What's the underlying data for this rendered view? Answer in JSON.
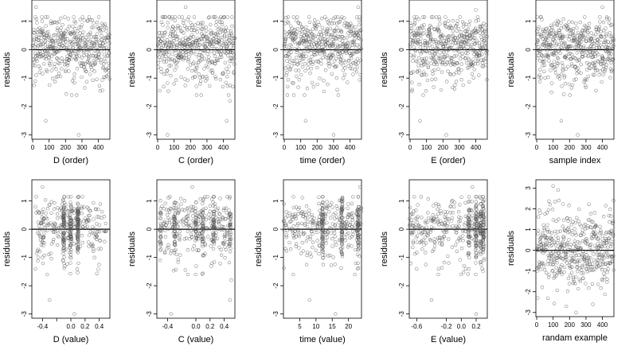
{
  "chart_data": [
    {
      "id": "D_order",
      "type": "scatter",
      "xlabel": "D (order)",
      "ylabel": "residuals",
      "xlim": [
        -5,
        470
      ],
      "ylim": [
        -3.15,
        1.75
      ],
      "xticks": [
        0,
        100,
        200,
        300,
        400
      ],
      "yticks": [
        -3,
        -2,
        -1,
        0,
        1
      ],
      "hline": 0,
      "gen": {
        "kind": "order",
        "n": 470,
        "seed": 11
      },
      "outliers": [
        [
          80,
          -2.5
        ],
        [
          280,
          -3.0
        ],
        [
          255,
          1.0
        ],
        [
          20,
          1.5
        ]
      ]
    },
    {
      "id": "C_order",
      "type": "scatter",
      "xlabel": "C (order)",
      "ylabel": "residuals",
      "xlim": [
        -5,
        470
      ],
      "ylim": [
        -3.15,
        1.75
      ],
      "xticks": [
        0,
        100,
        200,
        300,
        400
      ],
      "yticks": [
        -3,
        -2,
        -1,
        0,
        1
      ],
      "hline": 0,
      "gen": {
        "kind": "order",
        "n": 470,
        "seed": 22
      },
      "outliers": [
        [
          60,
          -3.0
        ],
        [
          420,
          -2.5
        ],
        [
          170,
          1.5
        ],
        [
          440,
          -1.8
        ]
      ]
    },
    {
      "id": "time_order",
      "type": "scatter",
      "xlabel": "time (order)",
      "ylabel": "residuals",
      "xlim": [
        -5,
        470
      ],
      "ylim": [
        -3.15,
        1.75
      ],
      "xticks": [
        0,
        100,
        200,
        300,
        400
      ],
      "yticks": [
        -3,
        -2,
        -1,
        0,
        1
      ],
      "hline": 0,
      "gen": {
        "kind": "order",
        "n": 470,
        "seed": 33
      },
      "outliers": [
        [
          130,
          -2.5
        ],
        [
          300,
          -3.0
        ],
        [
          450,
          1.5
        ],
        [
          20,
          -1.3
        ]
      ]
    },
    {
      "id": "E_order",
      "type": "scatter",
      "xlabel": "E (order)",
      "ylabel": "residuals",
      "xlim": [
        -5,
        470
      ],
      "ylim": [
        -3.15,
        1.75
      ],
      "xticks": [
        0,
        100,
        200,
        300,
        400
      ],
      "yticks": [
        -3,
        -2,
        -1,
        0,
        1
      ],
      "hline": 0,
      "gen": {
        "kind": "order",
        "n": 470,
        "seed": 44
      },
      "outliers": [
        [
          60,
          -2.5
        ],
        [
          220,
          -3.0
        ],
        [
          80,
          -1.6
        ],
        [
          400,
          1.4
        ]
      ]
    },
    {
      "id": "sample_index",
      "type": "scatter",
      "xlabel": "sample index",
      "ylabel": "residuals",
      "xlim": [
        -5,
        470
      ],
      "ylim": [
        -3.15,
        1.75
      ],
      "xticks": [
        0,
        100,
        200,
        300,
        400
      ],
      "yticks": [
        -3,
        -2,
        -1,
        0,
        1
      ],
      "hline": 0,
      "gen": {
        "kind": "order",
        "n": 470,
        "seed": 55
      },
      "outliers": [
        [
          150,
          -2.5
        ],
        [
          250,
          -3.0
        ],
        [
          400,
          1.5
        ],
        [
          90,
          -1.5
        ]
      ]
    },
    {
      "id": "D_value",
      "type": "scatter",
      "xlabel": "D (value)",
      "ylabel": "residuals",
      "xlim": [
        -0.55,
        0.55
      ],
      "ylim": [
        -3.15,
        1.75
      ],
      "xticks": [
        -0.4,
        -0.2,
        0,
        0.2,
        0.4
      ],
      "xticklabels": [
        "-0.4",
        "",
        "0.0",
        "0.2",
        "0.4"
      ],
      "yticks": [
        -3,
        -2,
        -1,
        0,
        1
      ],
      "hline": 0,
      "gen": {
        "kind": "value",
        "n": 460,
        "seed": 66,
        "spread": 0.5,
        "clusters": [
          -0.1,
          0.0,
          0.1
        ]
      },
      "outliers": [
        [
          -0.4,
          1.5
        ],
        [
          -0.3,
          -2.5
        ],
        [
          0.05,
          -3.0
        ],
        [
          -0.5,
          -1.4
        ]
      ]
    },
    {
      "id": "C_value",
      "type": "scatter",
      "xlabel": "C (value)",
      "ylabel": "residuals",
      "xlim": [
        -0.55,
        0.55
      ],
      "ylim": [
        -3.15,
        1.75
      ],
      "xticks": [
        -0.4,
        0,
        0.2,
        0.4
      ],
      "xticklabels": [
        "-0.4",
        "0.0",
        "0.2",
        "0.4"
      ],
      "yticks": [
        -3,
        -2,
        -1,
        0,
        1
      ],
      "hline": 0,
      "gen": {
        "kind": "value",
        "n": 460,
        "seed": 77,
        "spread": 0.5,
        "clusters": [
          -0.5,
          -0.3,
          0.0,
          0.1,
          0.25,
          0.48
        ]
      },
      "outliers": [
        [
          -0.35,
          -3.0
        ],
        [
          0.48,
          -2.5
        ],
        [
          -0.05,
          1.5
        ],
        [
          0.5,
          -1.8
        ]
      ]
    },
    {
      "id": "time_value",
      "type": "scatter",
      "xlabel": "time (value)",
      "ylabel": "residuals",
      "xlim": [
        0,
        24
      ],
      "ylim": [
        -3.15,
        1.75
      ],
      "xticks": [
        5,
        10,
        15,
        20
      ],
      "yticks": [
        -3,
        -2,
        -1,
        0,
        1
      ],
      "hline": 0,
      "gen": {
        "kind": "value",
        "n": 460,
        "seed": 88,
        "spread": 12,
        "center": 12,
        "clusters": [
          12,
          18,
          23
        ]
      },
      "outliers": [
        [
          8,
          -2.5
        ],
        [
          16,
          -3.0
        ],
        [
          23.5,
          1.5
        ],
        [
          3,
          -1.6
        ]
      ]
    },
    {
      "id": "E_value",
      "type": "scatter",
      "xlabel": "E (value)",
      "ylabel": "residuals",
      "xlim": [
        -0.7,
        0.35
      ],
      "ylim": [
        -3.15,
        1.75
      ],
      "xticks": [
        -0.6,
        -0.2,
        0.0,
        0.2
      ],
      "xticklabels": [
        "-0.6",
        "-0.2",
        "0.0",
        "0.2"
      ],
      "yticks": [
        -3,
        -2,
        -1,
        0,
        1
      ],
      "hline": 0,
      "gen": {
        "kind": "value",
        "n": 460,
        "seed": 99,
        "spread": 0.5,
        "center": -0.2,
        "clusters": [
          0.1,
          0.2,
          0.26,
          0.3
        ]
      },
      "outliers": [
        [
          -0.4,
          -2.5
        ],
        [
          0.2,
          -3.0
        ],
        [
          0.15,
          1.5
        ],
        [
          -0.6,
          -1.4
        ]
      ]
    },
    {
      "id": "random",
      "type": "scatter",
      "xlabel": "randam example",
      "ylabel": "residuals",
      "xlim": [
        -5,
        470
      ],
      "ylim": [
        -3.2,
        3.4
      ],
      "xticks": [
        0,
        100,
        200,
        300,
        400
      ],
      "yticks": [
        -3,
        -2,
        -1,
        0,
        1,
        2,
        3
      ],
      "hline": 0,
      "gen": {
        "kind": "random",
        "n": 470,
        "seed": 111
      },
      "outliers": [
        [
          100,
          3.1
        ],
        [
          130,
          2.9
        ],
        [
          240,
          -3.0
        ],
        [
          180,
          -2.7
        ]
      ]
    }
  ]
}
